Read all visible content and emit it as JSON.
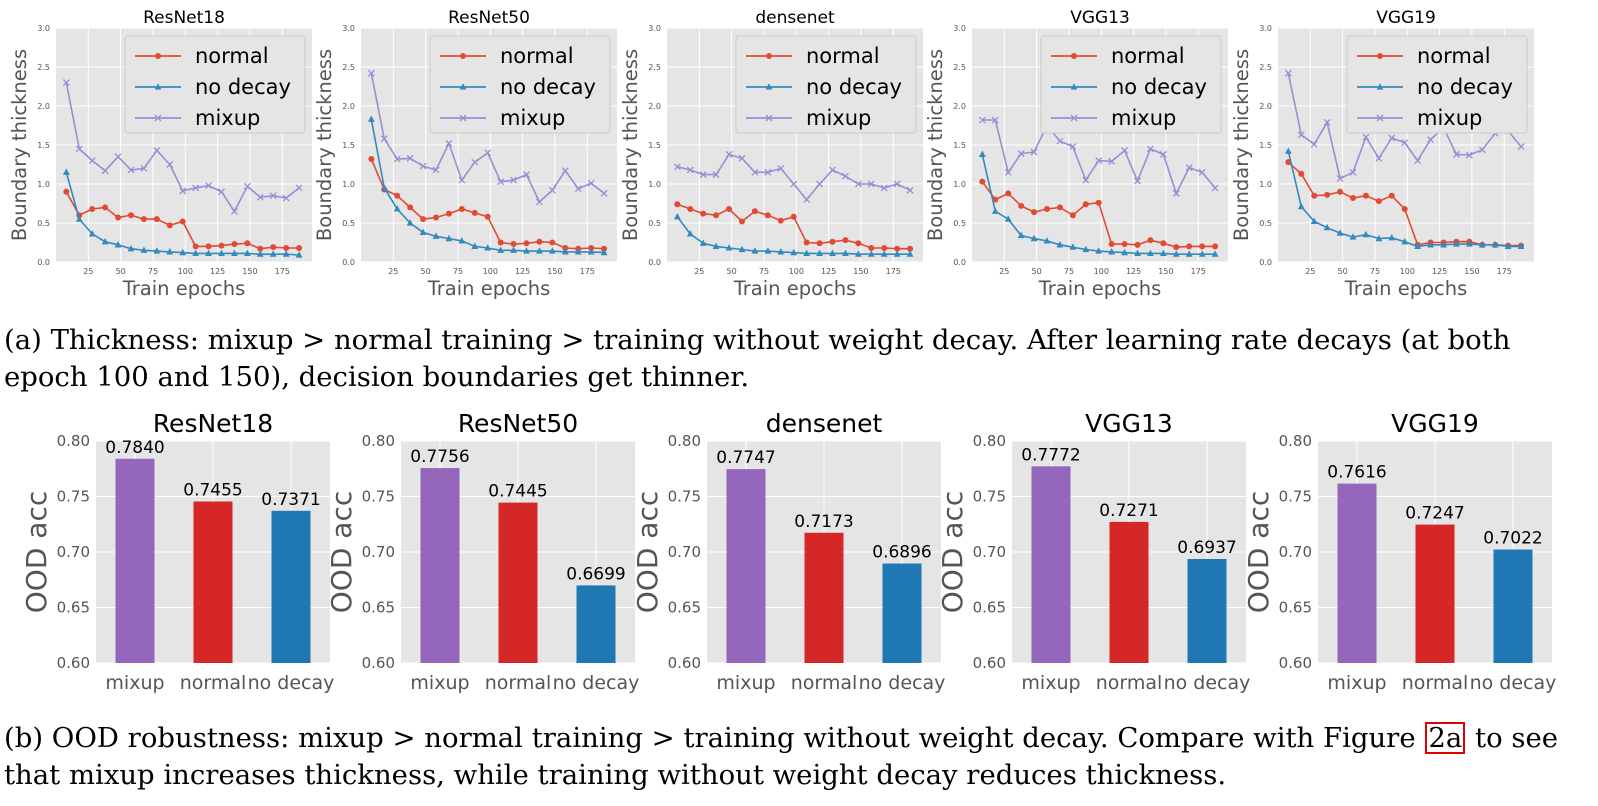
{
  "colors": {
    "normal": "#e24a33",
    "no_decay": "#348abd",
    "mixup": "#988ed5",
    "bar_mixup": "#9467bd",
    "bar_normal": "#d62728",
    "bar_no_decay": "#1f77b4",
    "panel_bg": "#e5e5e5",
    "ref_box": "#e00000"
  },
  "chart_data": [
    {
      "type": "line",
      "title": "ResNet18",
      "xlabel": "Train epochs",
      "ylabel": "Boundary thickness",
      "xlim": [
        0,
        198
      ],
      "ylim": [
        0,
        3.0
      ],
      "xticks": [
        25,
        50,
        75,
        100,
        125,
        150,
        175
      ],
      "yticks": [
        0.0,
        0.5,
        1.0,
        1.5,
        2.0,
        2.5,
        3.0
      ],
      "legend_position": "top-right",
      "x": [
        8,
        18,
        28,
        38,
        48,
        58,
        68,
        78,
        88,
        98,
        108,
        118,
        128,
        138,
        148,
        158,
        168,
        178,
        188
      ],
      "series": [
        {
          "name": "normal",
          "marker": "circle",
          "values": [
            0.9,
            0.6,
            0.68,
            0.7,
            0.57,
            0.6,
            0.55,
            0.55,
            0.47,
            0.52,
            0.2,
            0.2,
            0.21,
            0.23,
            0.24,
            0.17,
            0.19,
            0.18,
            0.18
          ]
        },
        {
          "name": "no decay",
          "marker": "triangle",
          "values": [
            1.15,
            0.55,
            0.36,
            0.26,
            0.22,
            0.17,
            0.15,
            0.14,
            0.13,
            0.12,
            0.11,
            0.11,
            0.11,
            0.11,
            0.11,
            0.1,
            0.1,
            0.1,
            0.09
          ]
        },
        {
          "name": "mixup",
          "marker": "x",
          "values": [
            2.3,
            1.45,
            1.3,
            1.17,
            1.35,
            1.18,
            1.2,
            1.43,
            1.25,
            0.91,
            0.95,
            0.98,
            0.9,
            0.65,
            0.97,
            0.83,
            0.85,
            0.82,
            0.95
          ]
        }
      ]
    },
    {
      "type": "line",
      "title": "ResNet50",
      "xlabel": "Train epochs",
      "ylabel": "Boundary thickness",
      "xlim": [
        0,
        198
      ],
      "ylim": [
        0,
        3.0
      ],
      "xticks": [
        25,
        50,
        75,
        100,
        125,
        150,
        175
      ],
      "yticks": [
        0.0,
        0.5,
        1.0,
        1.5,
        2.0,
        2.5,
        3.0
      ],
      "legend_position": "top-right",
      "x": [
        8,
        18,
        28,
        38,
        48,
        58,
        68,
        78,
        88,
        98,
        108,
        118,
        128,
        138,
        148,
        158,
        168,
        178,
        188
      ],
      "series": [
        {
          "name": "normal",
          "marker": "circle",
          "values": [
            1.32,
            0.93,
            0.85,
            0.7,
            0.55,
            0.57,
            0.62,
            0.68,
            0.63,
            0.58,
            0.25,
            0.23,
            0.24,
            0.26,
            0.25,
            0.18,
            0.17,
            0.18,
            0.17
          ]
        },
        {
          "name": "no decay",
          "marker": "triangle",
          "values": [
            1.83,
            0.95,
            0.68,
            0.5,
            0.38,
            0.33,
            0.3,
            0.27,
            0.2,
            0.18,
            0.15,
            0.15,
            0.14,
            0.14,
            0.14,
            0.13,
            0.13,
            0.13,
            0.12
          ]
        },
        {
          "name": "mixup",
          "marker": "x",
          "values": [
            2.42,
            1.58,
            1.32,
            1.33,
            1.23,
            1.18,
            1.52,
            1.05,
            1.28,
            1.4,
            1.03,
            1.05,
            1.12,
            0.77,
            0.92,
            1.17,
            0.94,
            1.01,
            0.88
          ]
        }
      ]
    },
    {
      "type": "line",
      "title": "densenet",
      "xlabel": "Train epochs",
      "ylabel": "Boundary thickness",
      "xlim": [
        0,
        198
      ],
      "ylim": [
        0,
        3.0
      ],
      "xticks": [
        25,
        50,
        75,
        100,
        125,
        150,
        175
      ],
      "yticks": [
        0.0,
        0.5,
        1.0,
        1.5,
        2.0,
        2.5,
        3.0
      ],
      "legend_position": "top-right",
      "x": [
        8,
        18,
        28,
        38,
        48,
        58,
        68,
        78,
        88,
        98,
        108,
        118,
        128,
        138,
        148,
        158,
        168,
        178,
        188
      ],
      "series": [
        {
          "name": "normal",
          "marker": "circle",
          "values": [
            0.74,
            0.68,
            0.62,
            0.6,
            0.68,
            0.52,
            0.65,
            0.6,
            0.53,
            0.58,
            0.25,
            0.24,
            0.26,
            0.28,
            0.24,
            0.18,
            0.18,
            0.17,
            0.17
          ]
        },
        {
          "name": "no decay",
          "marker": "triangle",
          "values": [
            0.58,
            0.36,
            0.24,
            0.2,
            0.18,
            0.16,
            0.14,
            0.14,
            0.13,
            0.12,
            0.11,
            0.11,
            0.11,
            0.11,
            0.1,
            0.1,
            0.1,
            0.1,
            0.1
          ]
        },
        {
          "name": "mixup",
          "marker": "x",
          "values": [
            1.22,
            1.18,
            1.12,
            1.12,
            1.38,
            1.33,
            1.15,
            1.15,
            1.2,
            1.0,
            0.8,
            1.0,
            1.18,
            1.1,
            1.0,
            1.0,
            0.95,
            1.0,
            0.92
          ]
        }
      ]
    },
    {
      "type": "line",
      "title": "VGG13",
      "xlabel": "Train epochs",
      "ylabel": "Boundary thickness",
      "xlim": [
        0,
        198
      ],
      "ylim": [
        0,
        3.0
      ],
      "xticks": [
        25,
        50,
        75,
        100,
        125,
        150,
        175
      ],
      "yticks": [
        0.0,
        0.5,
        1.0,
        1.5,
        2.0,
        2.5,
        3.0
      ],
      "legend_position": "top-right",
      "x": [
        8,
        18,
        28,
        38,
        48,
        58,
        68,
        78,
        88,
        98,
        108,
        118,
        128,
        138,
        148,
        158,
        168,
        178,
        188
      ],
      "series": [
        {
          "name": "normal",
          "marker": "circle",
          "values": [
            1.03,
            0.8,
            0.88,
            0.72,
            0.64,
            0.68,
            0.7,
            0.6,
            0.74,
            0.76,
            0.23,
            0.23,
            0.22,
            0.28,
            0.24,
            0.19,
            0.2,
            0.2,
            0.2
          ]
        },
        {
          "name": "no decay",
          "marker": "triangle",
          "values": [
            1.38,
            0.65,
            0.55,
            0.34,
            0.3,
            0.27,
            0.22,
            0.19,
            0.16,
            0.14,
            0.13,
            0.12,
            0.11,
            0.11,
            0.11,
            0.1,
            0.1,
            0.1,
            0.1
          ]
        },
        {
          "name": "mixup",
          "marker": "x",
          "values": [
            1.82,
            1.82,
            1.15,
            1.39,
            1.41,
            1.75,
            1.55,
            1.48,
            1.05,
            1.3,
            1.29,
            1.43,
            1.04,
            1.45,
            1.38,
            0.88,
            1.21,
            1.15,
            0.95
          ]
        }
      ]
    },
    {
      "type": "line",
      "title": "VGG19",
      "xlabel": "Train epochs",
      "ylabel": "Boundary thickness",
      "xlim": [
        0,
        198
      ],
      "ylim": [
        0,
        3.0
      ],
      "xticks": [
        25,
        50,
        75,
        100,
        125,
        150,
        175
      ],
      "yticks": [
        0.0,
        0.5,
        1.0,
        1.5,
        2.0,
        2.5,
        3.0
      ],
      "legend_position": "top-right",
      "x": [
        8,
        18,
        28,
        38,
        48,
        58,
        68,
        78,
        88,
        98,
        108,
        118,
        128,
        138,
        148,
        158,
        168,
        178,
        188
      ],
      "series": [
        {
          "name": "normal",
          "marker": "circle",
          "values": [
            1.28,
            1.13,
            0.85,
            0.86,
            0.9,
            0.82,
            0.85,
            0.78,
            0.85,
            0.68,
            0.22,
            0.25,
            0.25,
            0.26,
            0.26,
            0.22,
            0.22,
            0.21,
            0.21
          ]
        },
        {
          "name": "no decay",
          "marker": "triangle",
          "values": [
            1.42,
            0.71,
            0.52,
            0.44,
            0.37,
            0.32,
            0.35,
            0.3,
            0.31,
            0.26,
            0.2,
            0.22,
            0.22,
            0.23,
            0.23,
            0.22,
            0.22,
            0.2,
            0.2
          ]
        },
        {
          "name": "mixup",
          "marker": "x",
          "values": [
            2.42,
            1.63,
            1.51,
            1.79,
            1.07,
            1.15,
            1.6,
            1.33,
            1.59,
            1.53,
            1.3,
            1.57,
            1.72,
            1.38,
            1.37,
            1.44,
            1.65,
            1.68,
            1.48
          ]
        }
      ]
    },
    {
      "type": "bar",
      "title": "ResNet18",
      "ylabel": "OOD acc",
      "ylim": [
        0.6,
        0.8
      ],
      "yticks": [
        0.6,
        0.65,
        0.7,
        0.75,
        0.8
      ],
      "categories": [
        "mixup",
        "normal",
        "no decay"
      ],
      "values": [
        0.784,
        0.7455,
        0.7371
      ],
      "labels": [
        "0.7840",
        "0.7455",
        "0.7371"
      ]
    },
    {
      "type": "bar",
      "title": "ResNet50",
      "ylabel": "OOD acc",
      "ylim": [
        0.6,
        0.8
      ],
      "yticks": [
        0.6,
        0.65,
        0.7,
        0.75,
        0.8
      ],
      "categories": [
        "mixup",
        "normal",
        "no decay"
      ],
      "values": [
        0.7756,
        0.7445,
        0.6699
      ],
      "labels": [
        "0.7756",
        "0.7445",
        "0.6699"
      ]
    },
    {
      "type": "bar",
      "title": "densenet",
      "ylabel": "OOD acc",
      "ylim": [
        0.6,
        0.8
      ],
      "yticks": [
        0.6,
        0.65,
        0.7,
        0.75,
        0.8
      ],
      "categories": [
        "mixup",
        "normal",
        "no decay"
      ],
      "values": [
        0.7747,
        0.7173,
        0.6896
      ],
      "labels": [
        "0.7747",
        "0.7173",
        "0.6896"
      ]
    },
    {
      "type": "bar",
      "title": "VGG13",
      "ylabel": "OOD acc",
      "ylim": [
        0.6,
        0.8
      ],
      "yticks": [
        0.6,
        0.65,
        0.7,
        0.75,
        0.8
      ],
      "categories": [
        "mixup",
        "normal",
        "no decay"
      ],
      "values": [
        0.7772,
        0.7271,
        0.6937
      ],
      "labels": [
        "0.7772",
        "0.7271",
        "0.6937"
      ]
    },
    {
      "type": "bar",
      "title": "VGG19",
      "ylabel": "OOD acc",
      "ylim": [
        0.6,
        0.8
      ],
      "yticks": [
        0.6,
        0.65,
        0.7,
        0.75,
        0.8
      ],
      "categories": [
        "mixup",
        "normal",
        "no decay"
      ],
      "values": [
        0.7616,
        0.7247,
        0.7022
      ],
      "labels": [
        "0.7616",
        "0.7247",
        "0.7022"
      ]
    }
  ],
  "captions": {
    "a": "(a) Thickness: mixup > normal training > training without weight decay. After learning rate decays (at both epoch 100 and 150), decision boundaries get thinner.",
    "b_before": "(b) OOD robustness: mixup > normal training > training without weight decay. Compare with Figure",
    "b_ref": "2a",
    "b_after": "to see that mixup increases thickness, while training without weight decay reduces thickness."
  }
}
